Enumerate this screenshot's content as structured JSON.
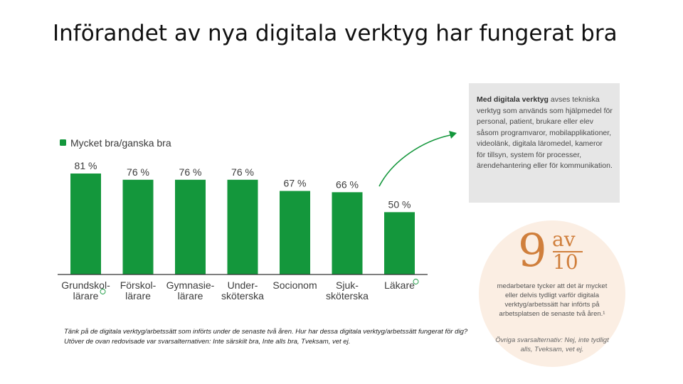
{
  "title": "Införandet av nya digitala verktyg har fungerat bra",
  "chart_data": {
    "type": "bar",
    "series": [
      {
        "name": "Mycket bra/ganska bra",
        "values": [
          81,
          76,
          76,
          76,
          67,
          66,
          50
        ],
        "color": "#14973c"
      }
    ],
    "categories": [
      [
        "Grundskol-",
        "lärare"
      ],
      [
        "Förskol-",
        "lärare"
      ],
      [
        "Gymnasie-",
        "lärare"
      ],
      [
        "Under-",
        "sköterska"
      ],
      [
        "Socionom"
      ],
      [
        "Sjuk-",
        "sköterska"
      ],
      [
        "Läkare"
      ]
    ],
    "value_labels": [
      "81 %",
      "76 %",
      "76 %",
      "76 %",
      "67 %",
      "66 %",
      "50 %"
    ],
    "category_marks": [
      "",
      "",
      "",
      "",
      "",
      "",
      ""
    ],
    "ylim": [
      0,
      81
    ],
    "grid": false,
    "legend_position": "top-left"
  },
  "footnote": "Tänk på de digitala verktyg/arbetssätt som införts under de senaste två åren. Hur har dessa digitala verktyg/arbetssätt fungerat för dig? Utöver de ovan redovisade var svarsalternativen: Inte särskilt bra, Inte alls bra, Tveksam, vet ej.",
  "info_box": {
    "bold_text": "Med digitala verktyg",
    "text": " avses tekniska verktyg som används som hjälpmedel för personal, patient, brukare eller elev såsom programvaror, mobilapplikationer, videolänk, digitala läromedel, kameror för tillsyn, system för processer, ärendehantering eller för kommunikation."
  },
  "stat_circle": {
    "number": "9",
    "fraction_top": "av",
    "fraction_bottom": "10",
    "text": "medarbetare tycker att det är mycket eller delvis tydligt varför digitala verktyg/arbetssätt har införts på arbetsplatsen de senaste två åren.¹",
    "other": "Övriga svarsalternativ: Nej, inte tydligt alls, Tveksam, vet ej."
  },
  "colors": {
    "bar": "#14973c",
    "circle_bg": "#fbeee3",
    "accent_orange": "#d07f3c",
    "info_bg": "#e6e6e6"
  }
}
